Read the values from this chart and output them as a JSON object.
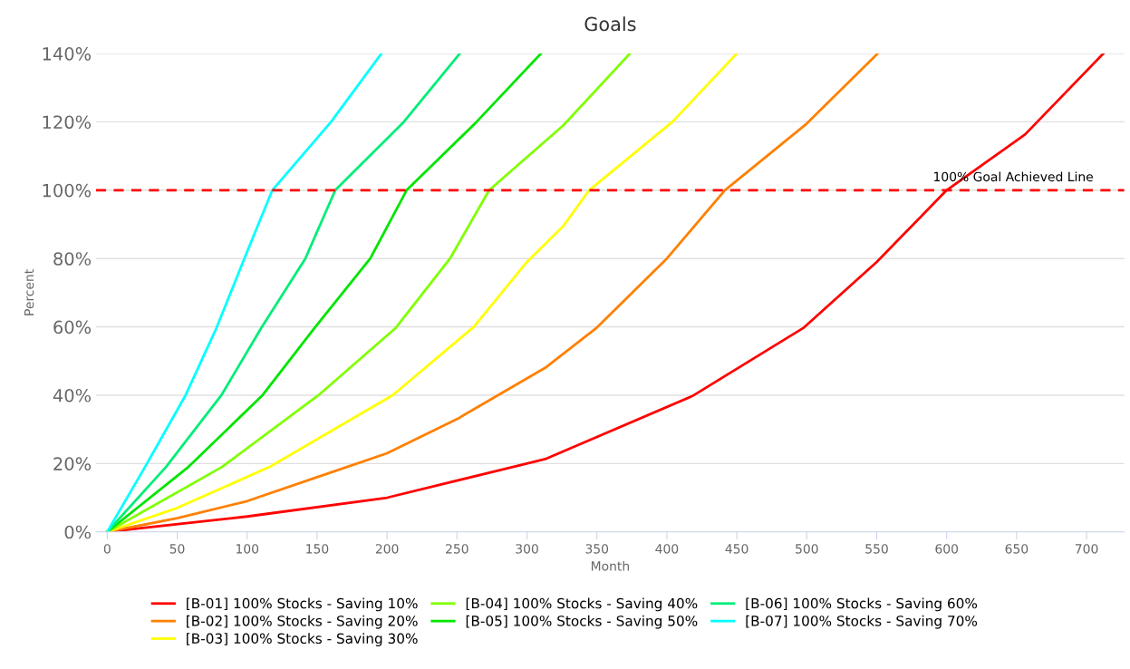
{
  "chart_data": {
    "type": "line",
    "title": "Goals",
    "xlabel": "Month",
    "ylabel": "Percent",
    "xlim": [
      -8,
      727
    ],
    "xticks": [
      0,
      50,
      100,
      150,
      200,
      250,
      300,
      350,
      400,
      450,
      500,
      550,
      600,
      650,
      700
    ],
    "ylim": [
      0,
      140
    ],
    "yticks": [
      {
        "value": 0,
        "label": "0%"
      },
      {
        "value": 20,
        "label": "20%"
      },
      {
        "value": 40,
        "label": "40%"
      },
      {
        "value": 60,
        "label": "60%"
      },
      {
        "value": 80,
        "label": "80%"
      },
      {
        "value": 100,
        "label": "100%"
      },
      {
        "value": 120,
        "label": "120%"
      },
      {
        "value": 140,
        "label": "140%"
      }
    ],
    "grid": "y",
    "legend": "bottom",
    "marker": "none",
    "line_style": "solid",
    "ref_lines": [
      {
        "axis": "y",
        "value": 100,
        "label": "100% Goal Achieved Line",
        "color": "#ff0000",
        "line_style": "dashed"
      }
    ],
    "series": [
      {
        "name": "[B-01] 100% Stocks - Saving 10%",
        "color": "#ff0000",
        "x": [
          0,
          100,
          200,
          313,
          418,
          498,
          550,
          600,
          656,
          712
        ],
        "values": [
          0,
          4.5,
          10,
          21.3,
          39.7,
          59.8,
          79,
          100,
          116.3,
          140
        ]
      },
      {
        "name": "[B-02] 100% Stocks - Saving 20%",
        "color": "#ff8000",
        "x": [
          0,
          50,
          100,
          150,
          200,
          250,
          313,
          350,
          400,
          441.5,
          500,
          550.7
        ],
        "values": [
          0,
          4,
          9,
          16,
          23,
          33,
          48,
          59.8,
          80,
          100,
          119.5,
          140
        ]
      },
      {
        "name": "[B-03] 100% Stocks - Saving 30%",
        "color": "#ffff00",
        "x": [
          0,
          50,
          116,
          204,
          262,
          300,
          326,
          344.5,
          404,
          450
        ],
        "values": [
          0,
          7,
          19,
          40,
          60,
          79,
          89.5,
          100,
          120,
          140
        ]
      },
      {
        "name": "[B-04] 100% Stocks - Saving 40%",
        "color": "#80ff00",
        "x": [
          0,
          82,
          151,
          206,
          245,
          273,
          326,
          373.6
        ],
        "values": [
          0,
          19,
          40,
          59.6,
          80,
          100,
          119,
          140
        ]
      },
      {
        "name": "[B-05] 100% Stocks - Saving 50%",
        "color": "#00e600",
        "x": [
          0,
          58,
          111,
          148,
          188,
          214,
          264,
          310
        ],
        "values": [
          0,
          19,
          40,
          59.6,
          80,
          100,
          120,
          140
        ]
      },
      {
        "name": "[B-06] 100% Stocks - Saving 60%",
        "color": "#00ee77",
        "x": [
          0,
          42,
          81.6,
          110,
          141.6,
          163,
          212,
          252
        ],
        "values": [
          0,
          19,
          40,
          59.6,
          80,
          100,
          120,
          140
        ]
      },
      {
        "name": "[B-07] 100% Stocks - Saving 70%",
        "color": "#00ffff",
        "x": [
          0,
          27,
          56,
          78,
          98,
          118,
          160,
          196
        ],
        "values": [
          0,
          19,
          40,
          59.6,
          80,
          100,
          120,
          140
        ]
      }
    ]
  }
}
